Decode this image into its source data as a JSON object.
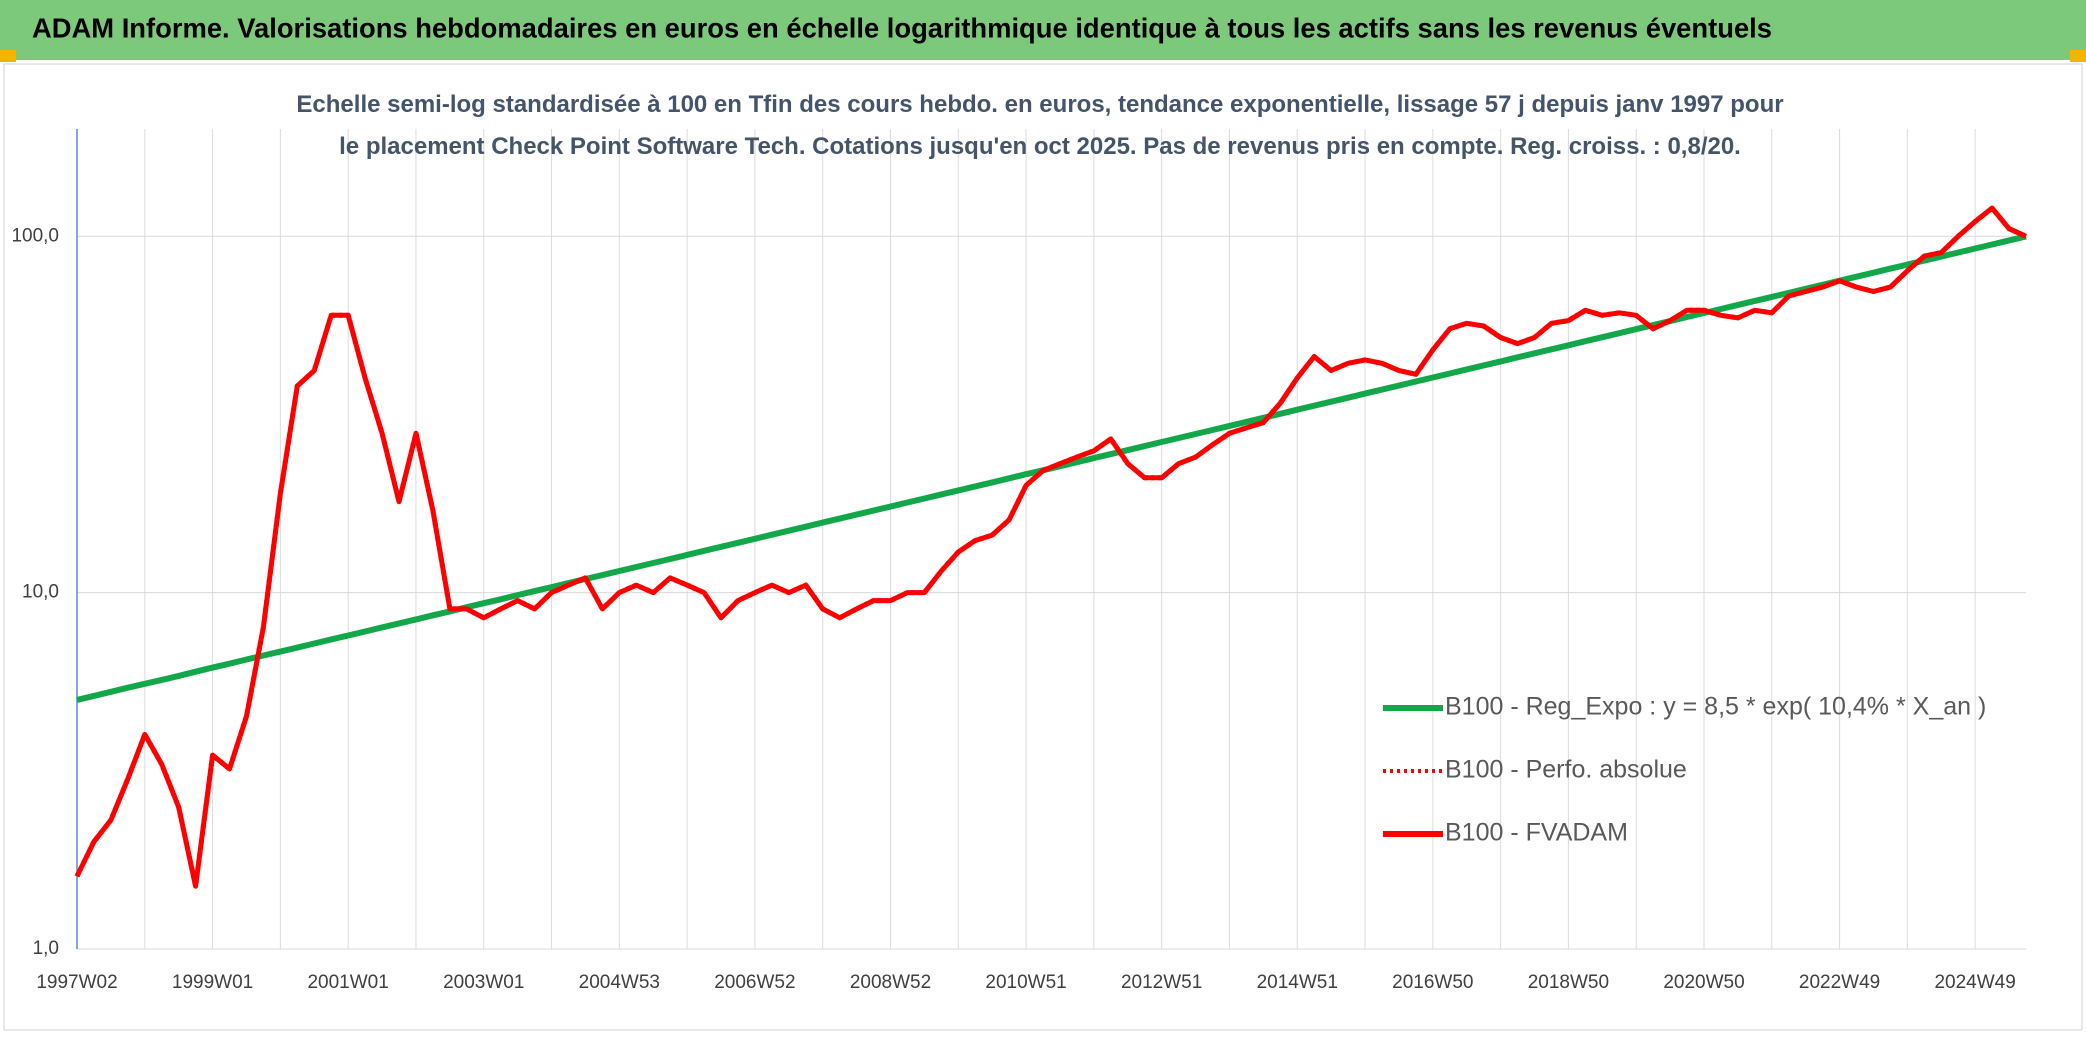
{
  "chart_data": {
    "type": "line",
    "title": "ADAM Informe. Valorisations hebdomadaires en euros en échelle logarithmique identique à tous les actifs sans les revenus éventuels",
    "subtitle": "Echelle semi-log standardisée à 100 en Tfin des cours hebdo. en euros, tendance exponentielle, lissage 57 j depuis janv 1997 pour le placement Check Point Software Tech. Cotations jusqu'en oct 2025. Pas de revenus pris en compte. Reg. croiss. : 0,8/20.",
    "categories": [
      "1997W02",
      null,
      null,
      null,
      null,
      null,
      null,
      null,
      "1999W01",
      null,
      null,
      null,
      null,
      null,
      null,
      null,
      "2001W01",
      null,
      null,
      null,
      null,
      null,
      null,
      null,
      "2003W01",
      null,
      null,
      null,
      null,
      null,
      null,
      null,
      "2004W53",
      null,
      null,
      null,
      null,
      null,
      null,
      null,
      "2006W52",
      null,
      null,
      null,
      null,
      null,
      null,
      null,
      "2008W52",
      null,
      null,
      null,
      null,
      null,
      null,
      null,
      "2010W51",
      null,
      null,
      null,
      null,
      null,
      null,
      null,
      "2012W51",
      null,
      null,
      null,
      null,
      null,
      null,
      null,
      "2014W51",
      null,
      null,
      null,
      null,
      null,
      null,
      null,
      "2016W50",
      null,
      null,
      null,
      null,
      null,
      null,
      null,
      "2018W50",
      null,
      null,
      null,
      null,
      null,
      null,
      null,
      "2020W50",
      null,
      null,
      null,
      null,
      null,
      null,
      null,
      "2022W49",
      null,
      null,
      null,
      null,
      null,
      null,
      null,
      "2024W49",
      null,
      null,
      null
    ],
    "series": [
      {
        "name": "B100 - Reg_Expo : y = 8,5 * exp( 10,4% *  X_an )",
        "color": "#12a84a",
        "dash": "solid",
        "values": [
          5.0,
          5.13,
          5.27,
          5.41,
          5.55,
          5.69,
          5.84,
          6.0,
          6.16,
          6.32,
          6.49,
          6.66,
          6.83,
          7.01,
          7.2,
          7.39,
          7.58,
          7.78,
          7.99,
          8.2,
          8.41,
          8.64,
          8.86,
          9.1,
          9.34,
          9.58,
          9.84,
          10.1,
          10.36,
          10.64,
          10.92,
          11.2,
          11.5,
          11.8,
          12.11,
          12.43,
          12.76,
          13.1,
          13.45,
          13.8,
          14.16,
          14.54,
          14.92,
          15.31,
          15.72,
          16.13,
          16.56,
          16.99,
          17.44,
          17.9,
          18.37,
          18.86,
          19.36,
          19.87,
          20.39,
          20.93,
          21.49,
          22.05,
          22.64,
          23.23,
          23.85,
          24.48,
          25.12,
          25.78,
          26.46,
          27.16,
          27.88,
          28.61,
          29.37,
          30.14,
          30.94,
          31.76,
          32.6,
          33.46,
          34.34,
          35.25,
          36.18,
          37.13,
          38.11,
          39.12,
          40.15,
          41.21,
          42.3,
          43.41,
          44.56,
          45.74,
          46.94,
          48.18,
          49.45,
          50.76,
          52.1,
          53.47,
          54.88,
          56.33,
          57.82,
          59.34,
          60.91,
          62.52,
          64.17,
          65.86,
          67.6,
          69.38,
          71.21,
          73.09,
          75.03,
          77.01,
          79.04,
          81.13,
          83.27,
          85.47,
          87.72,
          90.04,
          92.41,
          94.85,
          97.36,
          99.92
        ]
      },
      {
        "name": "B100 - Perfo. absolue",
        "color": "#ff0000",
        "dash": "dotted",
        "values": [
          1.6,
          2.0,
          2.3,
          3.0,
          4.0,
          3.3,
          2.5,
          1.5,
          3.5,
          3.2,
          4.5,
          8,
          19,
          38,
          42,
          60,
          60,
          40,
          28,
          18,
          28,
          17,
          9,
          9,
          8.5,
          9,
          9.5,
          9,
          10,
          10.5,
          11,
          9,
          10,
          10.5,
          10,
          11,
          10.5,
          10,
          8.5,
          9.5,
          10,
          10.5,
          10,
          10.5,
          9,
          8.5,
          9,
          9.5,
          9.5,
          10,
          10,
          11.5,
          13,
          14,
          14.5,
          16,
          20,
          22,
          23,
          24,
          25,
          27,
          23,
          21,
          21,
          23,
          24,
          26,
          28,
          29,
          30,
          34,
          40,
          46,
          42,
          44,
          45,
          44,
          42,
          41,
          48,
          55,
          57,
          56,
          52,
          50,
          52,
          57,
          58,
          62,
          60,
          61,
          60,
          55,
          58,
          62,
          62,
          60,
          59,
          62,
          61,
          68,
          70,
          72,
          75,
          72,
          70,
          72,
          80,
          88,
          90,
          100,
          110,
          120,
          105,
          100
        ]
      },
      {
        "name": "B100 - FVADAM",
        "color": "#ff0000",
        "dash": "solid",
        "values": [
          1.6,
          2.0,
          2.3,
          3.0,
          4.0,
          3.3,
          2.5,
          1.5,
          3.5,
          3.2,
          4.5,
          8,
          19,
          38,
          42,
          60,
          60,
          40,
          28,
          18,
          28,
          17,
          9,
          9,
          8.5,
          9,
          9.5,
          9,
          10,
          10.5,
          11,
          9,
          10,
          10.5,
          10,
          11,
          10.5,
          10,
          8.5,
          9.5,
          10,
          10.5,
          10,
          10.5,
          9,
          8.5,
          9,
          9.5,
          9.5,
          10,
          10,
          11.5,
          13,
          14,
          14.5,
          16,
          20,
          22,
          23,
          24,
          25,
          27,
          23,
          21,
          21,
          23,
          24,
          26,
          28,
          29,
          30,
          34,
          40,
          46,
          42,
          44,
          45,
          44,
          42,
          41,
          48,
          55,
          57,
          56,
          52,
          50,
          52,
          57,
          58,
          62,
          60,
          61,
          60,
          55,
          58,
          62,
          62,
          60,
          59,
          62,
          61,
          68,
          70,
          72,
          75,
          72,
          70,
          72,
          80,
          88,
          90,
          100,
          110,
          120,
          105,
          100
        ]
      }
    ],
    "ylim": [
      1,
      200
    ],
    "log_scale": true,
    "yticks": [
      {
        "value": 1,
        "label": "1,0"
      },
      {
        "value": 10,
        "label": "10,0"
      },
      {
        "value": 100,
        "label": "100,0"
      }
    ],
    "grid": true,
    "legend": "lower right"
  }
}
